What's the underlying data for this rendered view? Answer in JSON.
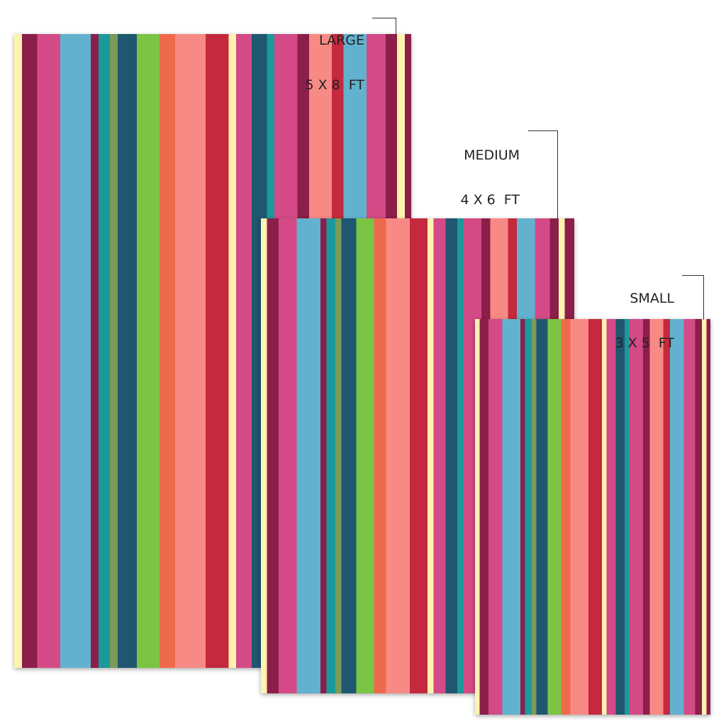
{
  "sizes": [
    {
      "name": "LARGE",
      "dimensions": "5 X 8  FT"
    },
    {
      "name": "MEDIUM",
      "dimensions": "4 X 6  FT"
    },
    {
      "name": "SMALL",
      "dimensions": "3 X 5  FT"
    }
  ]
}
